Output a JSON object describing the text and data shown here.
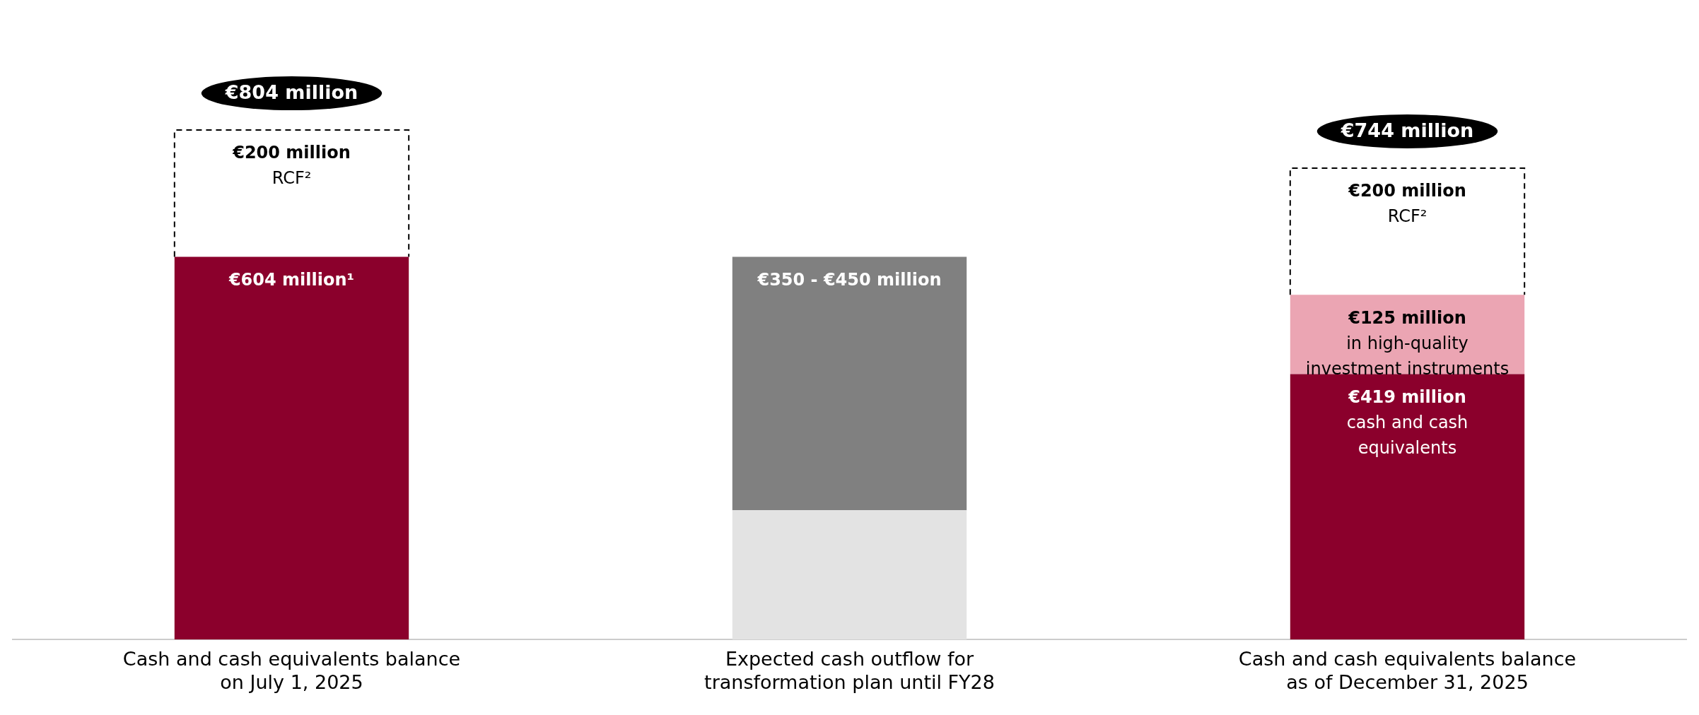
{
  "chart_data": {
    "type": "bar",
    "stacked": true,
    "legend": false,
    "grid": false,
    "tick_labels": "x",
    "categories": [
      "Cash and cash equivalents balance\non July 1, 2025",
      "Expected cash outflow for\ntransformation plan until FY28",
      "Cash and cash equivalents balance\nas of December 31, 2025"
    ],
    "series": [
      {
        "color": "#8b002c",
        "values": [
          604,
          null,
          419
        ],
        "value_labels": [
          "€604 million¹",
          null,
          "€419 million\ncash and cash\nequivalents"
        ]
      },
      {
        "color": "#eba5b3",
        "values": [
          null,
          null,
          125
        ],
        "value_labels": [
          null,
          null,
          "€125 million\nin high-quality\ninvestment instruments"
        ]
      },
      {
        "color": "#e3e3e3",
        "values": [
          null,
          204,
          null
        ]
      },
      {
        "color": "#808080",
        "values": [
          null,
          400,
          null
        ]
      },
      {
        "color": "#ffffff",
        "line_style": "dashed",
        "values": [
          200,
          null,
          200
        ],
        "value_labels": [
          "€200 million\nRCF²",
          null,
          "€200 million\nRCF²"
        ]
      }
    ],
    "totals": [
      "€804 million",
      null,
      "€744 million"
    ],
    "annotations": [
      {
        "text": "€350 - €450 million",
        "x": "Expected cash outflow for\ntransformation plan until FY28",
        "y": 604
      }
    ]
  }
}
